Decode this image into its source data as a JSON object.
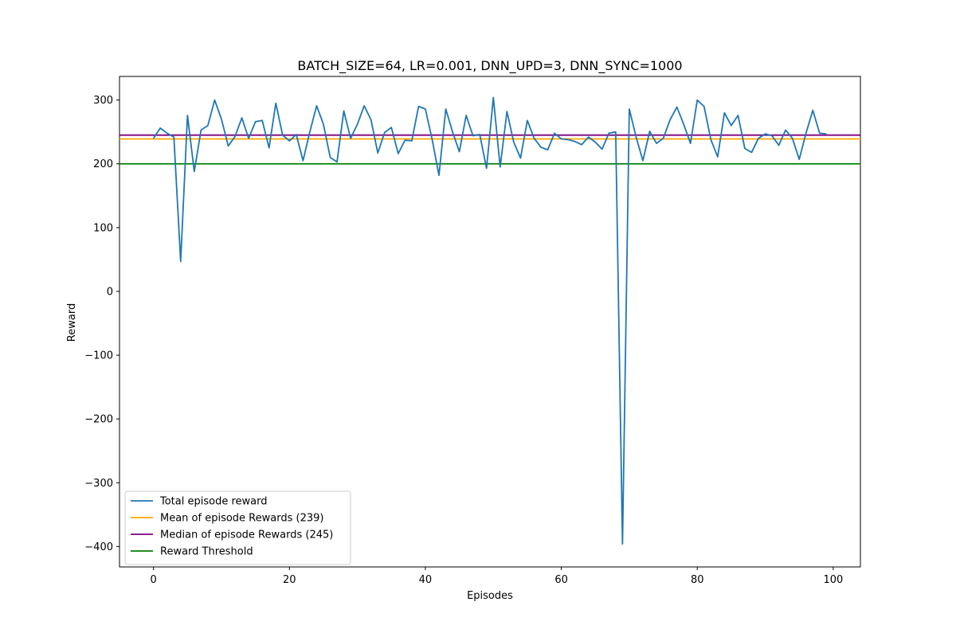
{
  "chart_data": {
    "type": "line",
    "title": "BATCH_SIZE=64, LR=0.001, DNN_UPD=3, DNN_SYNC=1000",
    "xlabel": "Episodes",
    "ylabel": "Reward",
    "xlim": [
      -5,
      104
    ],
    "ylim": [
      -432,
      337
    ],
    "xticks": [
      0,
      20,
      40,
      60,
      80,
      100
    ],
    "yticks": [
      -400,
      -300,
      -200,
      -100,
      0,
      100,
      200,
      300
    ],
    "grid": false,
    "legend_position": "lower-left",
    "x": [
      0,
      1,
      2,
      3,
      4,
      5,
      6,
      7,
      8,
      9,
      10,
      11,
      12,
      13,
      14,
      15,
      16,
      17,
      18,
      19,
      20,
      21,
      22,
      23,
      24,
      25,
      26,
      27,
      28,
      29,
      30,
      31,
      32,
      33,
      34,
      35,
      36,
      37,
      38,
      39,
      40,
      41,
      42,
      43,
      44,
      45,
      46,
      47,
      48,
      49,
      50,
      51,
      52,
      53,
      54,
      55,
      56,
      57,
      58,
      59,
      60,
      61,
      62,
      63,
      64,
      65,
      66,
      67,
      68,
      69,
      70,
      71,
      72,
      73,
      74,
      75,
      76,
      77,
      78,
      79,
      80,
      81,
      82,
      83,
      84,
      85,
      86,
      87,
      88,
      89,
      90,
      91,
      92,
      93,
      94,
      95,
      96,
      97,
      98,
      99
    ],
    "series": [
      {
        "name": "Total episode reward",
        "color": "#1f77b4",
        "values": [
          240,
          256,
          248,
          242,
          47,
          276,
          188,
          253,
          260,
          300,
          270,
          228,
          243,
          272,
          240,
          266,
          268,
          225,
          295,
          245,
          236,
          246,
          205,
          250,
          291,
          262,
          210,
          203,
          283,
          240,
          262,
          291,
          269,
          217,
          249,
          257,
          216,
          237,
          236,
          290,
          286,
          238,
          182,
          286,
          250,
          219,
          276,
          244,
          246,
          193,
          304,
          195,
          282,
          234,
          209,
          268,
          240,
          226,
          222,
          248,
          239,
          238,
          235,
          230,
          242,
          234,
          223,
          248,
          250,
          -396,
          286,
          242,
          205,
          251,
          232,
          240,
          269,
          289,
          262,
          232,
          300,
          290,
          238,
          211,
          280,
          260,
          276,
          224,
          218,
          240,
          247,
          244,
          229,
          253,
          240,
          207,
          248,
          284,
          248,
          247
        ]
      }
    ],
    "hlines": [
      {
        "name": "Mean of episode Rewards (239)",
        "value": 239,
        "color": "#ffa500"
      },
      {
        "name": "Median of episode Rewards (245)",
        "value": 245,
        "color": "#800080"
      },
      {
        "name": "Reward Threshold",
        "value": 200,
        "color": "#008000"
      }
    ]
  }
}
